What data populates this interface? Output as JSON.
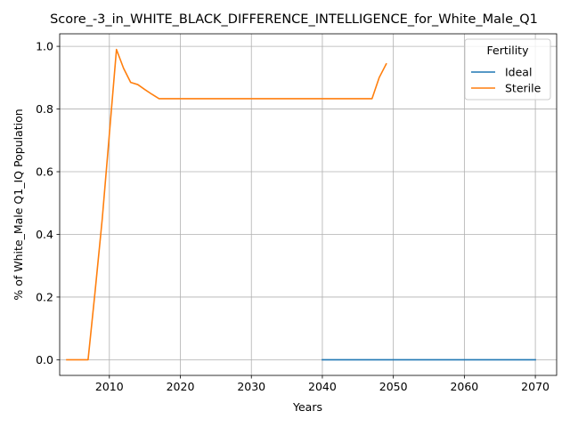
{
  "chart_data": {
    "type": "line",
    "title": "Score_-3_in_WHITE_BLACK_DIFFERENCE_INTELLIGENCE_for_White_Male_Q1",
    "xlabel": "Years",
    "ylabel": "% of White_Male Q1_IQ Population",
    "xlim": [
      2003,
      2073
    ],
    "ylim": [
      -0.05,
      1.04
    ],
    "xticks": [
      2010,
      2020,
      2030,
      2040,
      2050,
      2060,
      2070
    ],
    "yticks": [
      0.0,
      0.2,
      0.4,
      0.6,
      0.8,
      1.0
    ],
    "xtick_labels": [
      "2010",
      "2020",
      "2030",
      "2040",
      "2050",
      "2060",
      "2070"
    ],
    "ytick_labels": [
      "0.0",
      "0.2",
      "0.4",
      "0.6",
      "0.8",
      "1.0"
    ],
    "grid": true,
    "legend": {
      "title": "Fertility",
      "position": "top-right"
    },
    "series": [
      {
        "name": "Ideal",
        "color": "#1f77b4",
        "x": [
          2040,
          2045,
          2050,
          2055,
          2060,
          2065,
          2070
        ],
        "y": [
          0.0,
          0.0,
          0.0,
          0.0,
          0.0,
          0.0,
          0.0
        ]
      },
      {
        "name": "Sterile",
        "color": "#ff7f0e",
        "x": [
          2004,
          2005,
          2006,
          2007,
          2008,
          2009,
          2010,
          2011,
          2012,
          2013,
          2014,
          2015,
          2016,
          2017,
          2018,
          2020,
          2025,
          2030,
          2035,
          2040,
          2045,
          2047,
          2048,
          2049
        ],
        "y": [
          0.0,
          0.0,
          0.0,
          0.0,
          0.22,
          0.45,
          0.72,
          0.99,
          0.93,
          0.885,
          0.878,
          0.862,
          0.847,
          0.833,
          0.833,
          0.833,
          0.833,
          0.833,
          0.833,
          0.833,
          0.833,
          0.833,
          0.9,
          0.944
        ]
      }
    ]
  }
}
